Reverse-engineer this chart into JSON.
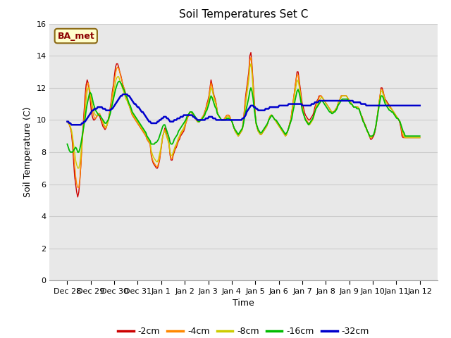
{
  "title": "Soil Temperatures Set C",
  "xlabel": "Time",
  "ylabel": "Soil Temperature (C)",
  "ylim": [
    0,
    16
  ],
  "yticks": [
    0,
    2,
    4,
    6,
    8,
    10,
    12,
    14,
    16
  ],
  "legend_label": "BA_met",
  "legend_entries": [
    "-2cm",
    "-4cm",
    "-8cm",
    "-16cm",
    "-32cm"
  ],
  "legend_colors": [
    "#cc0000",
    "#ff8800",
    "#cccc00",
    "#00bb00",
    "#0000cc"
  ],
  "x_labels": [
    "Dec 28",
    "Dec 29",
    "Dec 30",
    "Dec 31",
    "Jan 1",
    "Jan 2",
    "Jan 3",
    "Jan 4",
    "Jan 5",
    "Jan 6",
    "Jan 7",
    "Jan 8",
    "Jan 9",
    "Jan 10",
    "Jan 11",
    "Jan 12"
  ],
  "n_points": 337,
  "series_2cm": [
    9.9,
    9.8,
    9.7,
    9.5,
    9.2,
    8.5,
    7.5,
    6.5,
    6.0,
    5.5,
    5.2,
    5.5,
    6.2,
    7.2,
    8.5,
    9.5,
    10.5,
    11.5,
    12.2,
    12.5,
    12.3,
    11.8,
    11.2,
    10.5,
    10.2,
    10.0,
    10.0,
    10.1,
    10.2,
    10.3,
    10.3,
    10.2,
    10.0,
    9.8,
    9.6,
    9.5,
    9.4,
    9.5,
    9.7,
    10.0,
    10.3,
    10.8,
    11.2,
    11.8,
    12.2,
    12.8,
    13.3,
    13.5,
    13.5,
    13.3,
    13.0,
    12.8,
    12.5,
    12.2,
    12.0,
    11.8,
    11.5,
    11.3,
    11.1,
    10.9,
    10.7,
    10.5,
    10.3,
    10.2,
    10.1,
    10.0,
    9.9,
    9.8,
    9.7,
    9.6,
    9.5,
    9.4,
    9.3,
    9.2,
    9.1,
    9.0,
    8.8,
    8.7,
    8.6,
    8.5,
    7.8,
    7.5,
    7.3,
    7.2,
    7.1,
    7.0,
    7.0,
    7.2,
    7.5,
    8.0,
    8.5,
    9.0,
    9.2,
    9.5,
    9.3,
    9.0,
    8.8,
    8.5,
    7.8,
    7.5,
    7.5,
    7.8,
    8.0,
    8.2,
    8.3,
    8.5,
    8.7,
    8.8,
    9.0,
    9.1,
    9.2,
    9.3,
    9.5,
    9.8,
    10.0,
    10.2,
    10.3,
    10.5,
    10.5,
    10.4,
    10.3,
    10.2,
    10.1,
    10.0,
    9.9,
    9.9,
    9.9,
    10.0,
    10.1,
    10.2,
    10.3,
    10.5,
    10.7,
    11.0,
    11.2,
    11.5,
    12.0,
    12.5,
    12.2,
    11.8,
    11.5,
    11.3,
    11.0,
    10.5,
    10.3,
    10.2,
    10.1,
    10.0,
    10.0,
    10.0,
    10.1,
    10.2,
    10.3,
    10.3,
    10.3,
    10.2,
    10.0,
    9.9,
    9.7,
    9.5,
    9.3,
    9.2,
    9.1,
    9.0,
    9.1,
    9.2,
    9.3,
    9.5,
    10.0,
    10.8,
    11.5,
    12.0,
    12.5,
    13.0,
    14.0,
    14.2,
    13.5,
    12.5,
    11.5,
    10.5,
    9.8,
    9.5,
    9.3,
    9.2,
    9.1,
    9.1,
    9.2,
    9.3,
    9.4,
    9.5,
    9.6,
    9.8,
    10.0,
    10.2,
    10.3,
    10.3,
    10.2,
    10.1,
    10.0,
    9.9,
    9.8,
    9.7,
    9.6,
    9.5,
    9.4,
    9.3,
    9.2,
    9.1,
    9.0,
    9.1,
    9.3,
    9.5,
    9.8,
    10.0,
    10.5,
    11.0,
    11.5,
    12.0,
    12.5,
    13.0,
    13.0,
    12.5,
    12.0,
    11.5,
    11.0,
    10.8,
    10.5,
    10.3,
    10.2,
    10.1,
    10.0,
    10.0,
    10.1,
    10.2,
    10.3,
    10.5,
    10.8,
    11.0,
    11.2,
    11.3,
    11.5,
    11.5,
    11.5,
    11.4,
    11.3,
    11.2,
    11.1,
    11.0,
    10.9,
    10.8,
    10.7,
    10.6,
    10.5,
    10.5,
    10.5,
    10.6,
    10.7,
    10.8,
    11.0,
    11.2,
    11.3,
    11.5,
    11.5,
    11.5,
    11.5,
    11.5,
    11.5,
    11.4,
    11.3,
    11.2,
    11.1,
    11.0,
    10.9,
    10.8,
    10.8,
    10.8,
    10.8,
    10.8,
    10.7,
    10.5,
    10.3,
    10.2,
    10.0,
    9.8,
    9.7,
    9.5,
    9.3,
    9.2,
    9.0,
    8.8,
    8.8,
    8.9,
    9.0,
    9.2,
    9.5,
    10.0,
    10.5,
    11.0,
    11.5,
    12.0,
    12.0,
    11.8,
    11.5,
    11.3,
    11.2,
    11.1,
    11.0,
    10.9,
    10.8,
    10.7,
    10.6,
    10.5,
    10.4,
    10.3,
    10.2,
    10.1,
    10.0,
    9.8,
    9.5,
    9.0,
    8.9
  ],
  "series_4cm": [
    9.9,
    9.8,
    9.7,
    9.5,
    9.3,
    8.8,
    8.0,
    7.2,
    6.5,
    6.0,
    5.8,
    5.8,
    6.3,
    7.2,
    8.3,
    9.3,
    10.2,
    11.0,
    11.8,
    12.2,
    12.3,
    12.0,
    11.5,
    11.0,
    10.6,
    10.3,
    10.1,
    10.1,
    10.2,
    10.3,
    10.4,
    10.4,
    10.2,
    10.0,
    9.8,
    9.6,
    9.5,
    9.5,
    9.7,
    10.0,
    10.3,
    10.7,
    11.1,
    11.6,
    12.0,
    12.5,
    12.9,
    13.2,
    13.3,
    13.2,
    13.0,
    12.7,
    12.5,
    12.2,
    12.0,
    11.8,
    11.5,
    11.3,
    11.1,
    10.9,
    10.7,
    10.5,
    10.3,
    10.2,
    10.1,
    10.0,
    9.9,
    9.8,
    9.7,
    9.6,
    9.5,
    9.4,
    9.3,
    9.2,
    9.1,
    9.0,
    8.8,
    8.7,
    8.6,
    8.5,
    7.9,
    7.6,
    7.4,
    7.3,
    7.2,
    7.1,
    7.1,
    7.3,
    7.6,
    8.0,
    8.5,
    9.0,
    9.2,
    9.4,
    9.2,
    9.0,
    8.8,
    8.5,
    7.9,
    7.6,
    7.6,
    7.9,
    8.1,
    8.3,
    8.4,
    8.6,
    8.8,
    8.9,
    9.1,
    9.2,
    9.3,
    9.4,
    9.6,
    9.8,
    10.0,
    10.2,
    10.3,
    10.5,
    10.5,
    10.4,
    10.3,
    10.2,
    10.1,
    10.0,
    9.9,
    9.9,
    9.9,
    10.0,
    10.1,
    10.2,
    10.3,
    10.4,
    10.7,
    10.9,
    11.1,
    11.4,
    11.9,
    12.3,
    12.1,
    11.7,
    11.4,
    11.2,
    11.0,
    10.5,
    10.3,
    10.2,
    10.1,
    10.0,
    10.0,
    10.0,
    10.1,
    10.2,
    10.3,
    10.3,
    10.3,
    10.2,
    10.0,
    9.9,
    9.7,
    9.5,
    9.3,
    9.2,
    9.1,
    9.0,
    9.1,
    9.2,
    9.3,
    9.5,
    10.0,
    10.7,
    11.3,
    11.8,
    12.3,
    12.8,
    13.7,
    13.9,
    13.3,
    12.3,
    11.3,
    10.4,
    9.8,
    9.5,
    9.3,
    9.2,
    9.1,
    9.1,
    9.2,
    9.3,
    9.4,
    9.5,
    9.6,
    9.8,
    10.0,
    10.2,
    10.3,
    10.3,
    10.2,
    10.1,
    10.0,
    9.9,
    9.8,
    9.7,
    9.6,
    9.5,
    9.4,
    9.3,
    9.2,
    9.1,
    9.0,
    9.1,
    9.3,
    9.5,
    9.8,
    10.0,
    10.5,
    11.0,
    11.5,
    12.0,
    12.5,
    12.8,
    12.8,
    12.3,
    11.8,
    11.3,
    10.8,
    10.5,
    10.2,
    10.1,
    10.0,
    9.9,
    9.8,
    9.8,
    9.9,
    10.0,
    10.1,
    10.3,
    10.6,
    10.9,
    11.1,
    11.2,
    11.4,
    11.5,
    11.5,
    11.4,
    11.3,
    11.2,
    11.1,
    11.0,
    10.9,
    10.8,
    10.7,
    10.6,
    10.5,
    10.5,
    10.5,
    10.6,
    10.7,
    10.8,
    11.0,
    11.2,
    11.3,
    11.5,
    11.5,
    11.5,
    11.5,
    11.5,
    11.5,
    11.4,
    11.3,
    11.2,
    11.1,
    11.0,
    10.9,
    10.8,
    10.8,
    10.8,
    10.8,
    10.8,
    10.7,
    10.5,
    10.3,
    10.2,
    10.0,
    9.8,
    9.7,
    9.5,
    9.3,
    9.2,
    9.0,
    8.9,
    8.9,
    9.0,
    9.1,
    9.3,
    9.6,
    10.0,
    10.5,
    11.0,
    11.5,
    11.9,
    11.9,
    11.7,
    11.5,
    11.2,
    11.1,
    11.0,
    10.9,
    10.8,
    10.8,
    10.7,
    10.6,
    10.5,
    10.4,
    10.3,
    10.2,
    10.1,
    10.0,
    9.9,
    9.6,
    9.2,
    9.0,
    8.9
  ],
  "series_8cm": [
    9.9,
    9.8,
    9.7,
    9.6,
    9.4,
    9.0,
    8.5,
    8.0,
    7.5,
    7.2,
    7.0,
    7.0,
    7.3,
    7.9,
    8.5,
    9.2,
    9.8,
    10.5,
    11.2,
    11.8,
    12.0,
    12.0,
    11.7,
    11.3,
    10.9,
    10.6,
    10.4,
    10.3,
    10.3,
    10.3,
    10.3,
    10.3,
    10.2,
    10.0,
    9.9,
    9.7,
    9.6,
    9.6,
    9.7,
    9.9,
    10.1,
    10.5,
    10.8,
    11.2,
    11.6,
    12.0,
    12.4,
    12.6,
    12.7,
    12.7,
    12.5,
    12.3,
    12.1,
    11.9,
    11.7,
    11.5,
    11.3,
    11.2,
    11.0,
    10.9,
    10.7,
    10.5,
    10.4,
    10.3,
    10.2,
    10.1,
    10.0,
    9.9,
    9.8,
    9.7,
    9.6,
    9.5,
    9.4,
    9.3,
    9.2,
    9.1,
    8.9,
    8.8,
    8.7,
    8.6,
    8.1,
    7.9,
    7.7,
    7.6,
    7.5,
    7.4,
    7.4,
    7.6,
    7.9,
    8.2,
    8.6,
    9.0,
    9.2,
    9.3,
    9.1,
    8.9,
    8.7,
    8.5,
    8.0,
    7.8,
    7.8,
    8.0,
    8.2,
    8.4,
    8.5,
    8.7,
    8.9,
    9.0,
    9.2,
    9.3,
    9.4,
    9.5,
    9.7,
    9.9,
    10.1,
    10.3,
    10.4,
    10.5,
    10.5,
    10.4,
    10.3,
    10.2,
    10.1,
    10.0,
    9.9,
    9.9,
    9.9,
    10.0,
    10.1,
    10.2,
    10.2,
    10.4,
    10.6,
    10.8,
    11.0,
    11.2,
    11.7,
    12.0,
    11.9,
    11.6,
    11.3,
    11.1,
    10.9,
    10.5,
    10.3,
    10.2,
    10.1,
    10.0,
    10.0,
    10.0,
    10.0,
    10.1,
    10.2,
    10.2,
    10.2,
    10.1,
    10.0,
    9.9,
    9.7,
    9.5,
    9.3,
    9.2,
    9.1,
    9.0,
    9.1,
    9.2,
    9.3,
    9.4,
    9.8,
    10.4,
    11.0,
    11.5,
    12.0,
    12.5,
    13.3,
    13.5,
    12.9,
    12.0,
    11.0,
    10.3,
    9.7,
    9.5,
    9.3,
    9.2,
    9.1,
    9.1,
    9.2,
    9.3,
    9.4,
    9.5,
    9.6,
    9.8,
    10.0,
    10.2,
    10.3,
    10.3,
    10.2,
    10.1,
    10.0,
    9.9,
    9.8,
    9.7,
    9.6,
    9.5,
    9.4,
    9.3,
    9.2,
    9.1,
    9.0,
    9.1,
    9.3,
    9.5,
    9.7,
    9.9,
    10.3,
    10.8,
    11.3,
    11.7,
    12.1,
    12.4,
    12.5,
    12.1,
    11.7,
    11.2,
    10.8,
    10.5,
    10.2,
    10.0,
    9.9,
    9.8,
    9.7,
    9.7,
    9.8,
    9.9,
    10.0,
    10.2,
    10.5,
    10.7,
    10.9,
    11.0,
    11.2,
    11.3,
    11.4,
    11.4,
    11.3,
    11.2,
    11.1,
    11.0,
    10.9,
    10.8,
    10.7,
    10.6,
    10.5,
    10.5,
    10.5,
    10.6,
    10.7,
    10.8,
    11.0,
    11.2,
    11.3,
    11.4,
    11.5,
    11.5,
    11.5,
    11.5,
    11.5,
    11.4,
    11.3,
    11.2,
    11.1,
    11.0,
    10.9,
    10.8,
    10.8,
    10.8,
    10.8,
    10.8,
    10.7,
    10.5,
    10.3,
    10.1,
    9.9,
    9.8,
    9.6,
    9.4,
    9.3,
    9.1,
    9.0,
    8.9,
    8.9,
    9.0,
    9.1,
    9.3,
    9.6,
    10.0,
    10.5,
    11.0,
    11.4,
    11.8,
    11.8,
    11.6,
    11.4,
    11.2,
    11.1,
    11.0,
    10.9,
    10.8,
    10.7,
    10.7,
    10.6,
    10.5,
    10.4,
    10.3,
    10.2,
    10.1,
    10.0,
    9.9,
    9.7,
    9.4,
    9.2,
    9.0,
    8.9
  ],
  "series_16cm": [
    8.5,
    8.3,
    8.1,
    8.0,
    8.0,
    8.0,
    8.1,
    8.2,
    8.3,
    8.2,
    8.0,
    8.0,
    8.2,
    8.5,
    8.9,
    9.3,
    9.7,
    10.1,
    10.6,
    11.0,
    11.3,
    11.6,
    11.7,
    11.6,
    11.3,
    11.0,
    10.8,
    10.6,
    10.5,
    10.4,
    10.3,
    10.3,
    10.2,
    10.1,
    10.0,
    9.9,
    9.8,
    9.8,
    9.9,
    10.0,
    10.2,
    10.4,
    10.7,
    11.0,
    11.3,
    11.6,
    11.9,
    12.1,
    12.3,
    12.4,
    12.4,
    12.3,
    12.2,
    12.0,
    11.9,
    11.7,
    11.5,
    11.4,
    11.2,
    11.0,
    10.9,
    10.7,
    10.5,
    10.4,
    10.3,
    10.2,
    10.1,
    10.0,
    9.9,
    9.8,
    9.7,
    9.6,
    9.5,
    9.4,
    9.3,
    9.2,
    9.0,
    8.9,
    8.8,
    8.7,
    8.5,
    8.5,
    8.5,
    8.5,
    8.6,
    8.6,
    8.7,
    8.8,
    9.0,
    9.2,
    9.4,
    9.6,
    9.7,
    9.7,
    9.5,
    9.3,
    9.1,
    8.9,
    8.6,
    8.5,
    8.5,
    8.6,
    8.8,
    8.9,
    9.0,
    9.1,
    9.3,
    9.4,
    9.5,
    9.6,
    9.7,
    9.8,
    9.9,
    10.0,
    10.2,
    10.3,
    10.4,
    10.5,
    10.5,
    10.5,
    10.4,
    10.3,
    10.2,
    10.1,
    10.0,
    9.9,
    9.9,
    10.0,
    10.0,
    10.1,
    10.2,
    10.3,
    10.5,
    10.6,
    10.8,
    11.0,
    11.3,
    11.5,
    11.4,
    11.2,
    11.0,
    10.8,
    10.7,
    10.4,
    10.3,
    10.2,
    10.1,
    10.0,
    10.0,
    10.0,
    10.0,
    10.0,
    10.1,
    10.1,
    10.1,
    10.0,
    10.0,
    9.9,
    9.7,
    9.5,
    9.4,
    9.3,
    9.2,
    9.1,
    9.2,
    9.3,
    9.4,
    9.5,
    9.8,
    10.2,
    10.5,
    10.8,
    11.1,
    11.4,
    11.8,
    12.0,
    11.8,
    11.4,
    10.8,
    10.3,
    9.8,
    9.6,
    9.4,
    9.3,
    9.2,
    9.2,
    9.3,
    9.4,
    9.5,
    9.6,
    9.7,
    9.8,
    10.0,
    10.1,
    10.2,
    10.3,
    10.2,
    10.1,
    10.0,
    10.0,
    9.9,
    9.8,
    9.7,
    9.6,
    9.5,
    9.4,
    9.3,
    9.2,
    9.1,
    9.2,
    9.3,
    9.5,
    9.7,
    9.9,
    10.1,
    10.5,
    10.8,
    11.2,
    11.5,
    11.8,
    11.9,
    11.7,
    11.4,
    11.0,
    10.6,
    10.4,
    10.2,
    10.0,
    9.9,
    9.8,
    9.7,
    9.8,
    9.9,
    10.0,
    10.1,
    10.3,
    10.5,
    10.7,
    10.8,
    10.9,
    11.0,
    11.1,
    11.2,
    11.2,
    11.1,
    11.0,
    10.9,
    10.8,
    10.7,
    10.6,
    10.5,
    10.5,
    10.4,
    10.4,
    10.5,
    10.5,
    10.6,
    10.7,
    10.9,
    11.0,
    11.1,
    11.2,
    11.3,
    11.3,
    11.3,
    11.3,
    11.3,
    11.3,
    11.2,
    11.1,
    11.0,
    11.0,
    10.9,
    10.8,
    10.8,
    10.8,
    10.7,
    10.7,
    10.7,
    10.5,
    10.3,
    10.1,
    9.9,
    9.8,
    9.6,
    9.5,
    9.3,
    9.2,
    9.0,
    9.0,
    9.0,
    9.0,
    9.1,
    9.3,
    9.6,
    10.0,
    10.4,
    10.8,
    11.2,
    11.5,
    11.5,
    11.4,
    11.2,
    11.0,
    10.9,
    10.8,
    10.7,
    10.6,
    10.6,
    10.5,
    10.5,
    10.4,
    10.3,
    10.2,
    10.1,
    10.1,
    10.0,
    9.9,
    9.7,
    9.5,
    9.3,
    9.2,
    9.0
  ],
  "series_32cm": [
    9.9,
    9.9,
    9.8,
    9.8,
    9.7,
    9.7,
    9.7,
    9.7,
    9.7,
    9.7,
    9.7,
    9.7,
    9.7,
    9.7,
    9.8,
    9.8,
    9.9,
    9.9,
    10.0,
    10.1,
    10.2,
    10.3,
    10.4,
    10.5,
    10.6,
    10.6,
    10.7,
    10.7,
    10.7,
    10.8,
    10.8,
    10.8,
    10.8,
    10.8,
    10.7,
    10.7,
    10.7,
    10.6,
    10.6,
    10.6,
    10.6,
    10.6,
    10.7,
    10.7,
    10.8,
    10.9,
    11.0,
    11.1,
    11.2,
    11.3,
    11.4,
    11.5,
    11.5,
    11.6,
    11.6,
    11.6,
    11.6,
    11.6,
    11.5,
    11.5,
    11.4,
    11.3,
    11.2,
    11.1,
    11.0,
    11.0,
    10.9,
    10.8,
    10.8,
    10.7,
    10.6,
    10.5,
    10.5,
    10.4,
    10.3,
    10.2,
    10.1,
    10.0,
    9.9,
    9.9,
    9.8,
    9.8,
    9.8,
    9.8,
    9.8,
    9.8,
    9.9,
    9.9,
    10.0,
    10.0,
    10.1,
    10.1,
    10.2,
    10.2,
    10.2,
    10.1,
    10.1,
    10.0,
    9.9,
    9.9,
    9.9,
    9.9,
    10.0,
    10.0,
    10.0,
    10.1,
    10.1,
    10.1,
    10.2,
    10.2,
    10.2,
    10.3,
    10.3,
    10.3,
    10.3,
    10.3,
    10.3,
    10.3,
    10.3,
    10.3,
    10.2,
    10.2,
    10.1,
    10.1,
    10.0,
    10.0,
    10.0,
    10.0,
    10.0,
    10.0,
    10.0,
    10.0,
    10.1,
    10.1,
    10.1,
    10.2,
    10.2,
    10.2,
    10.2,
    10.1,
    10.1,
    10.1,
    10.0,
    10.0,
    10.0,
    10.0,
    10.0,
    10.0,
    10.0,
    10.0,
    10.0,
    10.0,
    10.0,
    10.0,
    10.0,
    10.0,
    10.0,
    10.0,
    10.0,
    10.0,
    10.0,
    10.0,
    10.0,
    10.0,
    10.0,
    10.0,
    10.0,
    10.1,
    10.1,
    10.2,
    10.3,
    10.5,
    10.6,
    10.7,
    10.8,
    10.9,
    10.9,
    10.9,
    10.8,
    10.8,
    10.7,
    10.7,
    10.6,
    10.6,
    10.6,
    10.6,
    10.6,
    10.6,
    10.6,
    10.7,
    10.7,
    10.7,
    10.7,
    10.8,
    10.8,
    10.8,
    10.8,
    10.8,
    10.8,
    10.8,
    10.8,
    10.8,
    10.9,
    10.9,
    10.9,
    10.9,
    10.9,
    10.9,
    10.9,
    10.9,
    10.9,
    11.0,
    11.0,
    11.0,
    11.0,
    11.0,
    11.0,
    11.0,
    11.0,
    11.0,
    11.0,
    11.0,
    11.0,
    11.0,
    10.9,
    10.9,
    10.9,
    10.9,
    10.9,
    10.9,
    10.9,
    10.9,
    10.9,
    11.0,
    11.0,
    11.0,
    11.1,
    11.1,
    11.1,
    11.1,
    11.2,
    11.2,
    11.2,
    11.2,
    11.2,
    11.2,
    11.2,
    11.2,
    11.2,
    11.2,
    11.2,
    11.2,
    11.2,
    11.2,
    11.2,
    11.2,
    11.2,
    11.2,
    11.2,
    11.2,
    11.2,
    11.2,
    11.2,
    11.2,
    11.2,
    11.2,
    11.2,
    11.2,
    11.2,
    11.2,
    11.2,
    11.2,
    11.2,
    11.1,
    11.1,
    11.1,
    11.1,
    11.1,
    11.1,
    11.1,
    11.0,
    11.0,
    11.0,
    11.0,
    11.0,
    10.9,
    10.9,
    10.9,
    10.9,
    10.9,
    10.9,
    10.9,
    10.9,
    10.9,
    10.9,
    10.9,
    10.9,
    10.9,
    10.9,
    10.9,
    10.9,
    10.9,
    10.9,
    10.9,
    10.9,
    10.9,
    10.9,
    10.9,
    10.9,
    10.9,
    10.9,
    10.9,
    10.9,
    10.9,
    10.9,
    10.9,
    10.9,
    10.9,
    10.9,
    10.9,
    10.9,
    10.9
  ],
  "line_colors": [
    "#cc0000",
    "#ff8800",
    "#cccc00",
    "#00bb00",
    "#0000cc"
  ],
  "line_widths": [
    1.0,
    1.0,
    1.0,
    1.3,
    1.8
  ],
  "grid_color": "#cccccc",
  "plot_bg": "#e8e8e8",
  "fig_bg": "#ffffff",
  "title_fontsize": 11,
  "axis_label_fontsize": 9,
  "tick_fontsize": 8
}
